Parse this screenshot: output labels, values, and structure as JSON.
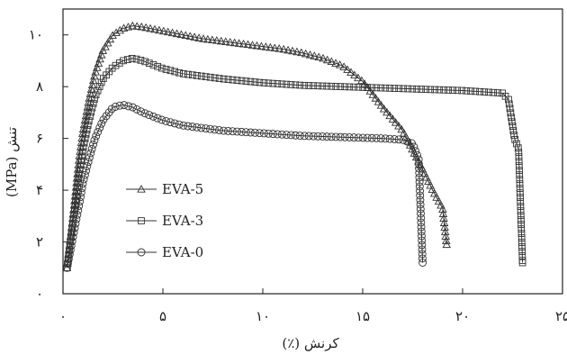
{
  "chart_data": {
    "type": "line",
    "xlabel": "کرنش (٪)",
    "ylabel": "تنش (MPa)",
    "xlim": [
      0,
      25
    ],
    "ylim": [
      0,
      11
    ],
    "x_ticks": [
      {
        "value": 0,
        "label": "۰"
      },
      {
        "value": 5,
        "label": "۵"
      },
      {
        "value": 10,
        "label": "۱۰"
      },
      {
        "value": 15,
        "label": "۱۵"
      },
      {
        "value": 20,
        "label": "۲۰"
      },
      {
        "value": 25,
        "label": "۲۵"
      }
    ],
    "y_ticks": [
      {
        "value": 0,
        "label": "۰"
      },
      {
        "value": 2,
        "label": "۲"
      },
      {
        "value": 4,
        "label": "۴"
      },
      {
        "value": 6,
        "label": "۶"
      },
      {
        "value": 8,
        "label": "۸"
      },
      {
        "value": 10,
        "label": "۱۰"
      }
    ],
    "grid": false,
    "legend_position": "lower-left",
    "series": [
      {
        "name": "EVA-5",
        "marker": "triangle",
        "x": [
          0.2,
          0.5,
          0.8,
          1.0,
          1.3,
          1.6,
          2.0,
          2.5,
          3.0,
          3.5,
          4.0,
          5.0,
          6.0,
          7.0,
          8.0,
          9.0,
          10.0,
          11.0,
          12.0,
          13.0,
          14.0,
          15.0,
          15.5,
          16.0,
          17.0,
          18.0,
          18.5,
          19.0,
          19.2
        ],
        "y": [
          1.0,
          3.0,
          5.2,
          6.3,
          7.5,
          8.5,
          9.4,
          10.0,
          10.25,
          10.35,
          10.3,
          10.15,
          10.0,
          9.85,
          9.75,
          9.65,
          9.55,
          9.45,
          9.3,
          9.1,
          8.8,
          8.2,
          7.7,
          7.2,
          6.3,
          4.8,
          4.0,
          3.3,
          1.9
        ]
      },
      {
        "name": "EVA-3",
        "marker": "square",
        "x": [
          0.2,
          0.5,
          0.8,
          1.0,
          1.3,
          1.6,
          2.0,
          2.5,
          3.0,
          3.5,
          4.0,
          5.0,
          6.0,
          8.0,
          10.0,
          12.0,
          14.0,
          16.0,
          18.0,
          20.0,
          21.0,
          22.0,
          22.3,
          22.6,
          22.8,
          23.0
        ],
        "y": [
          1.0,
          2.8,
          4.6,
          5.6,
          6.7,
          7.6,
          8.3,
          8.75,
          9.0,
          9.1,
          9.0,
          8.7,
          8.5,
          8.3,
          8.15,
          8.05,
          8.0,
          7.95,
          7.9,
          7.85,
          7.8,
          7.75,
          7.5,
          6.0,
          5.6,
          1.2
        ]
      },
      {
        "name": "EVA-0",
        "marker": "circle",
        "x": [
          0.2,
          0.5,
          0.8,
          1.0,
          1.3,
          1.6,
          2.0,
          2.5,
          3.0,
          3.5,
          4.0,
          5.0,
          6.0,
          8.0,
          10.0,
          12.0,
          14.0,
          16.0,
          17.0,
          17.5,
          17.8,
          18.0
        ],
        "y": [
          1.0,
          2.2,
          3.4,
          4.3,
          5.2,
          6.0,
          6.7,
          7.2,
          7.3,
          7.2,
          7.0,
          6.7,
          6.5,
          6.3,
          6.2,
          6.1,
          6.05,
          6.0,
          5.95,
          5.8,
          5.2,
          1.2
        ]
      }
    ]
  }
}
